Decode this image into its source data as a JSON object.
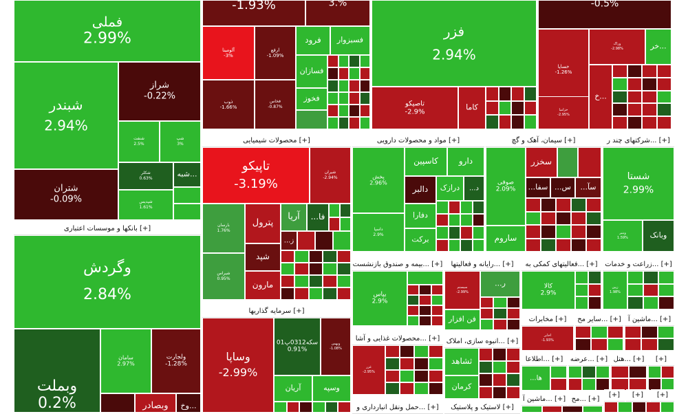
{
  "colors": {
    "bright_green": "#2fb82f",
    "green": "#3e9e3e",
    "dark_green": "#1f5f1f",
    "bright_red": "#e8141c",
    "red": "#b2171d",
    "dark_red": "#6a1010",
    "maroon": "#4a0a0a",
    "header_bg": "#ffffff"
  },
  "section_headers": [
    {
      "id": "banks",
      "label": "بانکها و موسسات اعتباری [+]"
    },
    {
      "id": "chemical",
      "label": "محصولات شیمیایی [+]"
    },
    {
      "id": "pharma",
      "label": "مواد و محصولات دارویی [+]"
    },
    {
      "id": "cement",
      "label": "سیمان، آهک و گچ [+]"
    },
    {
      "id": "multi",
      "label": "شرکتهای چند ر... [+]"
    },
    {
      "id": "insurance",
      "label": "بیمه و صندوق بازنشست... [+]"
    },
    {
      "id": "computer",
      "label": "رایانه و فعالیتها... [+]"
    },
    {
      "id": "support",
      "label": "فعالیتهای کمکی به... [+]"
    },
    {
      "id": "agri",
      "label": "زراعت و خدمات... [+]"
    },
    {
      "id": "invest",
      "label": "سرمایه گذاریها [+]"
    },
    {
      "id": "food",
      "label": "محصولات غذایی و آشا... [+]"
    },
    {
      "id": "building",
      "label": "انبوه سازی، املاک... [+]"
    },
    {
      "id": "telecom",
      "label": "مخابرات [+]"
    },
    {
      "id": "other_mining",
      "label": "سایر مح... [+]"
    },
    {
      "id": "machinery",
      "label": "ماشین آ... [+]"
    },
    {
      "id": "info",
      "label": "اطلاعا... [+]"
    },
    {
      "id": "supply",
      "label": "عرضه... [+]"
    },
    {
      "id": "hotel",
      "label": "هتل... [+]"
    },
    {
      "id": "small1",
      "label": "[+]"
    },
    {
      "id": "transport",
      "label": "حمل ونقل انبارداری و... [+]"
    },
    {
      "id": "plastic",
      "label": "لاستیک و پلاستیک [+]"
    },
    {
      "id": "machinery2",
      "label": "ماشین آ... [+]"
    },
    {
      "id": "other2",
      "label": "مح... [+]"
    },
    {
      "id": "small2",
      "label": "[+]"
    },
    {
      "id": "small3",
      "label": "[+]"
    },
    {
      "id": "small4",
      "label": "[+]"
    }
  ],
  "tiles": {
    "fameli": {
      "name": "فملی",
      "pct": "2.99%"
    },
    "top_mid1": {
      "name": "",
      "pct": "-1.93%"
    },
    "top_mid2": {
      "name": "",
      "pct": "3.%"
    },
    "fazar": {
      "name": "فزر",
      "pct": "2.94%"
    },
    "top_right": {
      "name": "",
      "pct": "-0.5%"
    },
    "shebandar": {
      "name": "شبندر",
      "pct": "2.94%"
    },
    "shiraz": {
      "name": "شراز",
      "pct": "-0.22%"
    },
    "shetran": {
      "name": "شتران",
      "pct": "-0.09%"
    },
    "shebe": {
      "name": "شبه...",
      "pct": ""
    },
    "shapna_small": {
      "name": "شنفت",
      "pct": "2.5%"
    },
    "shap_small2": {
      "name": "شپ",
      "pct": "3%"
    },
    "shekar_small": {
      "name": "شکلر",
      "pct": "0.63%"
    },
    "shepdis_small": {
      "name": "شپدیس",
      "pct": "1.61%"
    },
    "vegardesh": {
      "name": "وگردش",
      "pct": "2.84%"
    },
    "vebmellat": {
      "name": "وبملت",
      "pct": "0.2%"
    },
    "saman": {
      "name": "سامان",
      "pct": "2.97%"
    },
    "vanjat": {
      "name": "ولجارت",
      "pct": "-1.28%"
    },
    "vebsader": {
      "name": "وبصادر",
      "pct": ""
    },
    "vekhar": {
      "name": "وخ...",
      "pct": ""
    },
    "almina": {
      "name": "آلومینا",
      "pct": "-3%"
    },
    "arfe": {
      "name": "ارفع",
      "pct": "-1.09%"
    },
    "zob": {
      "name": "ذوب",
      "pct": "-1.66%"
    },
    "fakhaz_red": {
      "name": "فخاس",
      "pct": "-0.87%"
    },
    "faroo": {
      "name": "فرود",
      "pct": ""
    },
    "fesabzevar": {
      "name": "فسبزوار",
      "pct": ""
    },
    "fesazan": {
      "name": "فسازان",
      "pct": ""
    },
    "fakhoz": {
      "name": "فخوز",
      "pct": ""
    },
    "tapico_s": {
      "name": "تاصیکو",
      "pct": "-2.9%"
    },
    "kama": {
      "name": "کاما",
      "pct": ""
    },
    "khasapa": {
      "name": "خساپا",
      "pct": "-1.26%"
    },
    "khezamia": {
      "name": "خزامیا",
      "pct": "-2.95%"
    },
    "vakh": {
      "name": "خ...",
      "pct": ""
    },
    "kherk": {
      "name": "خر...",
      "pct": ""
    },
    "verak": {
      "name": "وراک",
      "pct": "-2.98%"
    },
    "tapiko": {
      "name": "تاپیکو",
      "pct": "-3.19%"
    },
    "shiran_s": {
      "name": "شیران",
      "pct": "-2.94%"
    },
    "bandar_s": {
      "name": "بارسان",
      "pct": "1.76%"
    },
    "petrol": {
      "name": "پترول",
      "pct": ""
    },
    "arya": {
      "name": "آریا",
      "pct": ""
    },
    "fa": {
      "name": "...فا",
      "pct": ""
    },
    "shepad": {
      "name": "شپد",
      "pct": ""
    },
    "ze": {
      "name": "...ز",
      "pct": ""
    },
    "marun": {
      "name": "مارون",
      "pct": ""
    },
    "shiraz_s": {
      "name": "شیراس",
      "pct": "0.95%"
    },
    "pakhsh": {
      "name": "پخش",
      "pct": "2.96%"
    },
    "kaspin": {
      "name": "کاسپین",
      "pct": ""
    },
    "daru": {
      "name": "دارو",
      "pct": ""
    },
    "dalber": {
      "name": "دالبر",
      "pct": ""
    },
    "darazak": {
      "name": "درازک",
      "pct": ""
    },
    "dd": {
      "name": "...د",
      "pct": ""
    },
    "dfara": {
      "name": "دفارا",
      "pct": ""
    },
    "barakat": {
      "name": "برکت",
      "pct": ""
    },
    "dasina_s": {
      "name": "داسپا",
      "pct": "2.9%"
    },
    "sesofi": {
      "name": "صوفی",
      "pct": "2.09%"
    },
    "sarvom": {
      "name": "ساروم",
      "pct": ""
    },
    "sekhzar": {
      "name": "سخزر",
      "pct": ""
    },
    "se": {
      "name": "...س",
      "pct": ""
    },
    "sa": {
      "name": "...سآ",
      "pct": ""
    },
    "safa": {
      "name": "...سفا",
      "pct": ""
    },
    "shasta": {
      "name": "شستا",
      "pct": "2.99%"
    },
    "vebank": {
      "name": "وبانک",
      "pct": ""
    },
    "vebani_s": {
      "name": "وبنیر",
      "pct": "1.59%"
    },
    "bipas": {
      "name": "بپاس",
      "pct": "2.9%"
    },
    "fanafzar": {
      "name": "فن افزار",
      "pct": ""
    },
    "sys_s": {
      "name": "سیستم",
      "pct": "-2.99%"
    },
    "rayan": {
      "name": "...ر",
      "pct": ""
    },
    "kala": {
      "name": "کالا",
      "pct": "2.9%"
    },
    "zeen_s": {
      "name": "زپین",
      "pct": "1.98%"
    },
    "vesapa": {
      "name": "وساپا",
      "pct": "-2.99%"
    },
    "sekkeh": {
      "name": "سکه0312پ01",
      "pct": "0.91%"
    },
    "aryan": {
      "name": "آریان",
      "pct": ""
    },
    "vesepah": {
      "name": "وسپه",
      "pct": ""
    },
    "vebahmn_s": {
      "name": "وبهمن",
      "pct": "-1.08%"
    },
    "ghazar_s": {
      "name": "غزر",
      "pct": "-2.95%"
    },
    "sheshahed": {
      "name": "ثشاهد",
      "pct": ""
    },
    "kerman": {
      "name": "کرمان",
      "pct": ""
    },
    "ha": {
      "name": "...ها",
      "pct": ""
    },
    "akhaber_s": {
      "name": "اخابر",
      "pct": "-1.93%"
    }
  }
}
